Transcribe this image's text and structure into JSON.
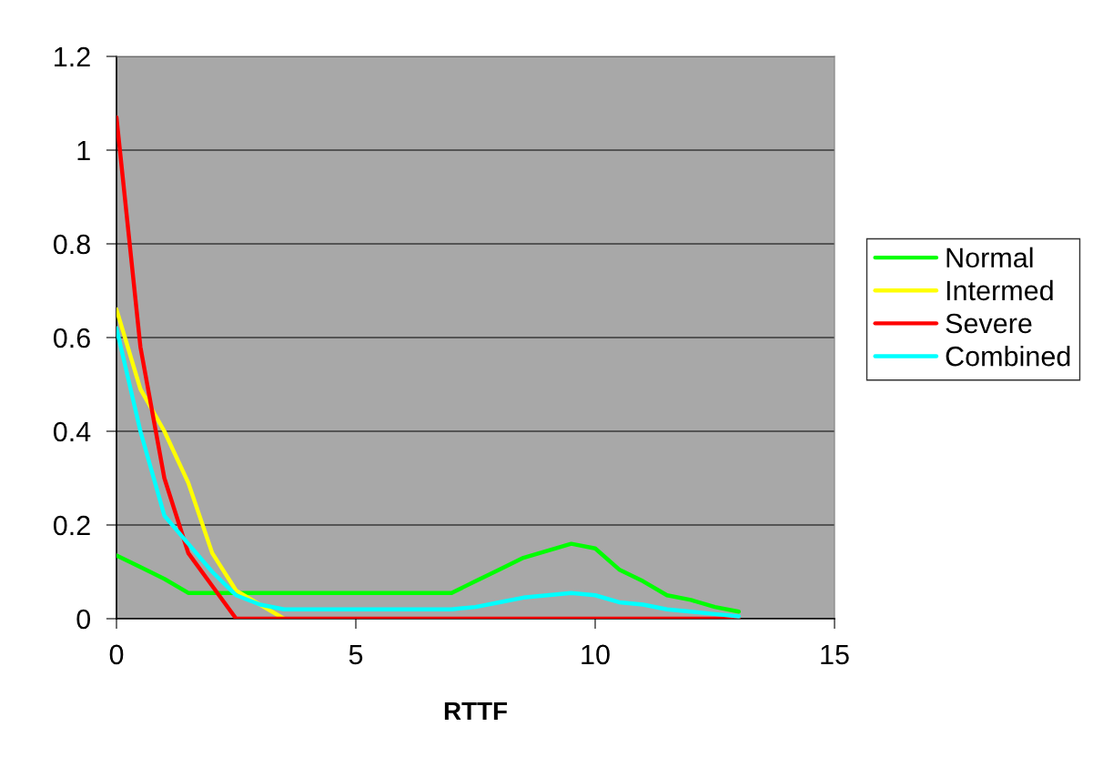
{
  "chart_data": {
    "type": "line",
    "xlabel": "RTTF",
    "x": [
      0,
      0.5,
      1,
      1.5,
      2,
      2.5,
      3,
      3.5,
      4,
      4.5,
      5,
      5.5,
      6,
      6.5,
      7,
      7.5,
      8,
      8.5,
      9,
      9.5,
      10,
      10.5,
      11,
      11.5,
      12,
      12.5,
      13
    ],
    "series": [
      {
        "name": "Normal",
        "color": "#00ff00",
        "values": [
          0.135,
          0.11,
          0.085,
          0.055,
          0.055,
          0.055,
          0.055,
          0.055,
          0.055,
          0.055,
          0.055,
          0.055,
          0.055,
          0.055,
          0.055,
          0.08,
          0.105,
          0.13,
          0.145,
          0.16,
          0.15,
          0.105,
          0.08,
          0.05,
          0.04,
          0.025,
          0.015
        ]
      },
      {
        "name": "Intermed",
        "color": "#ffff00",
        "values": [
          0.66,
          0.49,
          0.4,
          0.29,
          0.14,
          0.06,
          0.03,
          0,
          null,
          null,
          null,
          null,
          null,
          null,
          null,
          null,
          null,
          null,
          null,
          null,
          null,
          null,
          null,
          null,
          null,
          null,
          null
        ]
      },
      {
        "name": "Severe",
        "color": "#ff0000",
        "values": [
          1.07,
          0.58,
          0.3,
          0.14,
          0.07,
          0,
          0,
          0,
          0,
          0,
          0,
          0,
          0,
          0,
          0,
          0,
          0,
          0,
          0,
          0,
          0,
          0,
          0,
          0,
          0,
          0,
          0
        ]
      },
      {
        "name": "Combined",
        "color": "#00ffff",
        "values": [
          0.62,
          0.4,
          0.22,
          0.16,
          0.1,
          0.05,
          0.03,
          0.02,
          0.02,
          0.02,
          0.02,
          0.02,
          0.02,
          0.02,
          0.02,
          0.025,
          0.035,
          0.045,
          0.05,
          0.055,
          0.05,
          0.035,
          0.03,
          0.02,
          0.015,
          0.01,
          0.005
        ]
      }
    ],
    "xlim": [
      0,
      15
    ],
    "xticks": [
      0,
      5,
      10,
      15
    ],
    "ylim": [
      0,
      1.2
    ],
    "yticks": [
      0,
      0.2,
      0.4,
      0.6,
      0.8,
      1,
      1.2
    ],
    "grid": "y",
    "legend": "right",
    "marker": "none",
    "line_style": "solid"
  }
}
